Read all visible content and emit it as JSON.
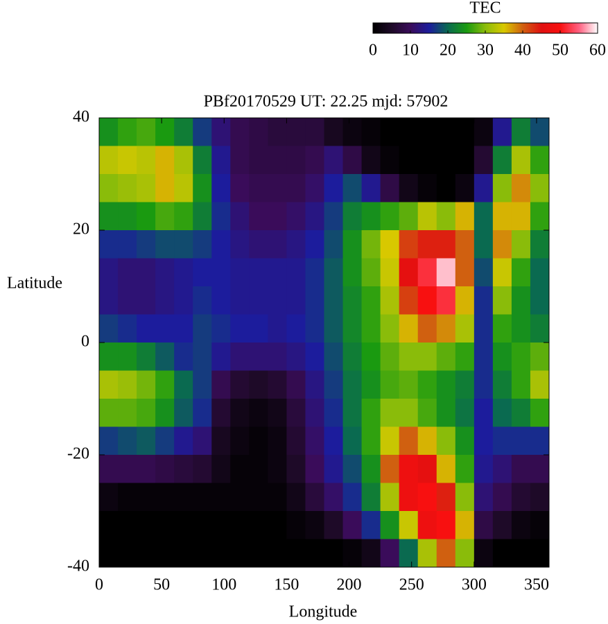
{
  "chart_data": {
    "type": "heatmap",
    "title": "PBf20170529  UT: 22.25  mjd: 57902",
    "x_label": "Longitude",
    "y_label": "Latitude",
    "xlim": [
      0,
      360
    ],
    "xticks": [
      0,
      50,
      100,
      150,
      200,
      250,
      300,
      350
    ],
    "ylim": [
      -40,
      40
    ],
    "yticks": [
      -40,
      -20,
      0,
      20,
      40
    ],
    "x": [
      7.5,
      22.5,
      37.5,
      52.5,
      67.5,
      82.5,
      97.5,
      112.5,
      127.5,
      142.5,
      157.5,
      172.5,
      187.5,
      202.5,
      217.5,
      232.5,
      247.5,
      262.5,
      277.5,
      292.5,
      307.5,
      322.5,
      337.5,
      352.5
    ],
    "y": [
      37.5,
      32.5,
      27.5,
      22.5,
      17.5,
      12.5,
      7.5,
      2.5,
      -2.5,
      -7.5,
      -12.5,
      -17.5,
      -22.5,
      -27.5,
      -32.5,
      -37.5
    ],
    "values": [
      [
        24,
        26,
        27,
        25,
        22,
        17,
        12,
        9,
        8,
        7,
        7,
        7,
        4,
        2,
        1,
        0,
        0,
        0,
        0,
        0,
        2,
        14,
        22,
        18
      ],
      [
        33,
        34,
        33,
        36,
        32,
        22,
        14,
        9,
        8,
        8,
        8,
        9,
        12,
        8,
        3,
        1,
        0,
        0,
        0,
        0,
        6,
        22,
        32,
        26
      ],
      [
        30,
        31,
        32,
        36,
        33,
        24,
        15,
        10,
        9,
        9,
        9,
        11,
        15,
        18,
        14,
        8,
        3,
        1,
        0,
        2,
        14,
        30,
        38,
        30
      ],
      [
        24,
        24,
        25,
        27,
        26,
        22,
        16,
        12,
        10,
        10,
        11,
        13,
        17,
        22,
        24,
        26,
        28,
        33,
        30,
        36,
        20,
        36,
        36,
        26
      ],
      [
        16,
        16,
        17,
        18,
        18,
        17,
        15,
        13,
        12,
        12,
        13,
        15,
        18,
        24,
        29,
        35,
        42,
        44,
        44,
        40,
        20,
        38,
        30,
        22
      ],
      [
        13,
        12,
        12,
        13,
        14,
        15,
        15,
        14,
        14,
        14,
        14,
        16,
        19,
        24,
        28,
        34,
        46,
        52,
        58,
        40,
        18,
        34,
        26,
        20
      ],
      [
        13,
        12,
        12,
        13,
        14,
        16,
        15,
        14,
        14,
        14,
        14,
        16,
        19,
        23,
        26,
        32,
        42,
        50,
        52,
        36,
        16,
        30,
        24,
        20
      ],
      [
        17,
        16,
        15,
        15,
        15,
        17,
        16,
        15,
        15,
        14,
        15,
        16,
        19,
        23,
        26,
        30,
        36,
        40,
        38,
        32,
        16,
        26,
        24,
        22
      ],
      [
        24,
        24,
        22,
        19,
        16,
        17,
        14,
        12,
        12,
        12,
        13,
        15,
        18,
        22,
        25,
        28,
        30,
        30,
        28,
        26,
        16,
        24,
        26,
        28
      ],
      [
        32,
        31,
        29,
        26,
        20,
        17,
        9,
        6,
        5,
        6,
        9,
        13,
        17,
        21,
        24,
        27,
        28,
        26,
        24,
        22,
        16,
        22,
        26,
        32
      ],
      [
        28,
        28,
        27,
        24,
        19,
        16,
        6,
        3,
        2,
        3,
        7,
        12,
        16,
        21,
        26,
        30,
        30,
        27,
        24,
        21,
        15,
        20,
        22,
        26
      ],
      [
        17,
        18,
        19,
        17,
        14,
        12,
        4,
        2,
        1,
        2,
        6,
        11,
        15,
        20,
        26,
        34,
        40,
        36,
        30,
        24,
        15,
        16,
        16,
        16
      ],
      [
        9,
        9,
        9,
        8,
        7,
        6,
        3,
        1,
        1,
        2,
        5,
        10,
        14,
        18,
        24,
        40,
        48,
        46,
        36,
        26,
        14,
        12,
        9,
        9
      ],
      [
        2,
        1,
        1,
        1,
        1,
        1,
        1,
        1,
        1,
        1,
        3,
        7,
        11,
        16,
        22,
        32,
        48,
        50,
        44,
        30,
        12,
        9,
        6,
        5
      ],
      [
        0,
        0,
        0,
        0,
        0,
        0,
        0,
        0,
        0,
        0,
        1,
        2,
        5,
        10,
        16,
        24,
        34,
        48,
        50,
        36,
        8,
        5,
        2,
        1
      ],
      [
        0,
        0,
        0,
        0,
        0,
        0,
        0,
        0,
        0,
        0,
        0,
        0,
        0,
        1,
        3,
        10,
        20,
        32,
        40,
        30,
        2,
        0,
        0,
        0
      ]
    ],
    "colorbar": {
      "title": "TEC",
      "lim": [
        0,
        60
      ],
      "ticks": [
        0,
        10,
        20,
        30,
        40,
        50,
        60
      ],
      "colors": [
        "#000000",
        "#1e0a28",
        "#3a0c5a",
        "#1c1c9c",
        "#0a6a50",
        "#1a9a10",
        "#8abc0a",
        "#d8c800",
        "#d06010",
        "#e01010",
        "#f81010",
        "#ff6080",
        "#ffffff"
      ]
    }
  }
}
